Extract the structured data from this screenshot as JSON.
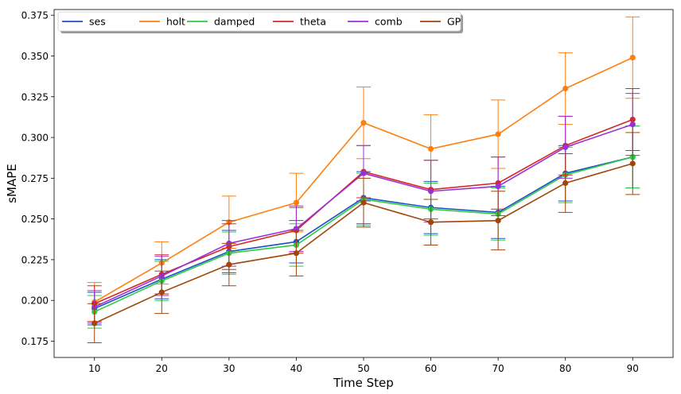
{
  "chart_data": {
    "type": "line",
    "title": "",
    "xlabel": "Time Step",
    "ylabel": "sMAPE",
    "x": [
      10,
      20,
      30,
      40,
      50,
      60,
      70,
      80,
      90
    ],
    "xticks": [
      "10",
      "20",
      "30",
      "40",
      "50",
      "60",
      "70",
      "80",
      "90"
    ],
    "xlim": [
      4,
      96
    ],
    "ylim": [
      0.165,
      0.3785
    ],
    "yticks": [
      0.175,
      0.2,
      0.225,
      0.25,
      0.275,
      0.3,
      0.325,
      0.35,
      0.375
    ],
    "ytick_labels": [
      "0.175",
      "0.200",
      "0.225",
      "0.250",
      "0.275",
      "0.300",
      "0.325",
      "0.350",
      "0.375"
    ],
    "grid": false,
    "legend_placement": "top-left",
    "series": [
      {
        "name": "ses",
        "color": "#1f4fc9",
        "values": [
          0.195,
          0.213,
          0.23,
          0.236,
          0.263,
          0.257,
          0.254,
          0.278,
          0.288
        ],
        "errors": [
          0.01,
          0.012,
          0.013,
          0.013,
          0.016,
          0.016,
          0.016,
          0.017,
          0.019
        ]
      },
      {
        "name": "holt",
        "color": "#ff7f0e",
        "values": [
          0.199,
          0.223,
          0.248,
          0.26,
          0.309,
          0.293,
          0.302,
          0.33,
          0.349
        ],
        "errors": [
          0.012,
          0.013,
          0.016,
          0.018,
          0.022,
          0.021,
          0.021,
          0.022,
          0.025
        ]
      },
      {
        "name": "damped",
        "color": "#2ecc40",
        "values": [
          0.193,
          0.212,
          0.229,
          0.234,
          0.262,
          0.256,
          0.253,
          0.277,
          0.288
        ],
        "errors": [
          0.01,
          0.012,
          0.013,
          0.013,
          0.016,
          0.016,
          0.016,
          0.017,
          0.019
        ]
      },
      {
        "name": "theta",
        "color": "#d62728",
        "values": [
          0.198,
          0.216,
          0.233,
          0.243,
          0.279,
          0.268,
          0.272,
          0.295,
          0.311
        ],
        "errors": [
          0.011,
          0.012,
          0.014,
          0.014,
          0.016,
          0.018,
          0.016,
          0.018,
          0.019
        ]
      },
      {
        "name": "comb",
        "color": "#9b30d9",
        "values": [
          0.196,
          0.215,
          0.235,
          0.244,
          0.278,
          0.267,
          0.27,
          0.294,
          0.308
        ],
        "errors": [
          0.01,
          0.012,
          0.014,
          0.014,
          0.017,
          0.019,
          0.018,
          0.019,
          0.019
        ]
      },
      {
        "name": "GP",
        "color": "#a0450b",
        "values": [
          0.186,
          0.205,
          0.222,
          0.229,
          0.26,
          0.248,
          0.249,
          0.272,
          0.284
        ],
        "errors": [
          0.012,
          0.013,
          0.013,
          0.014,
          0.015,
          0.014,
          0.018,
          0.018,
          0.019
        ]
      }
    ]
  }
}
